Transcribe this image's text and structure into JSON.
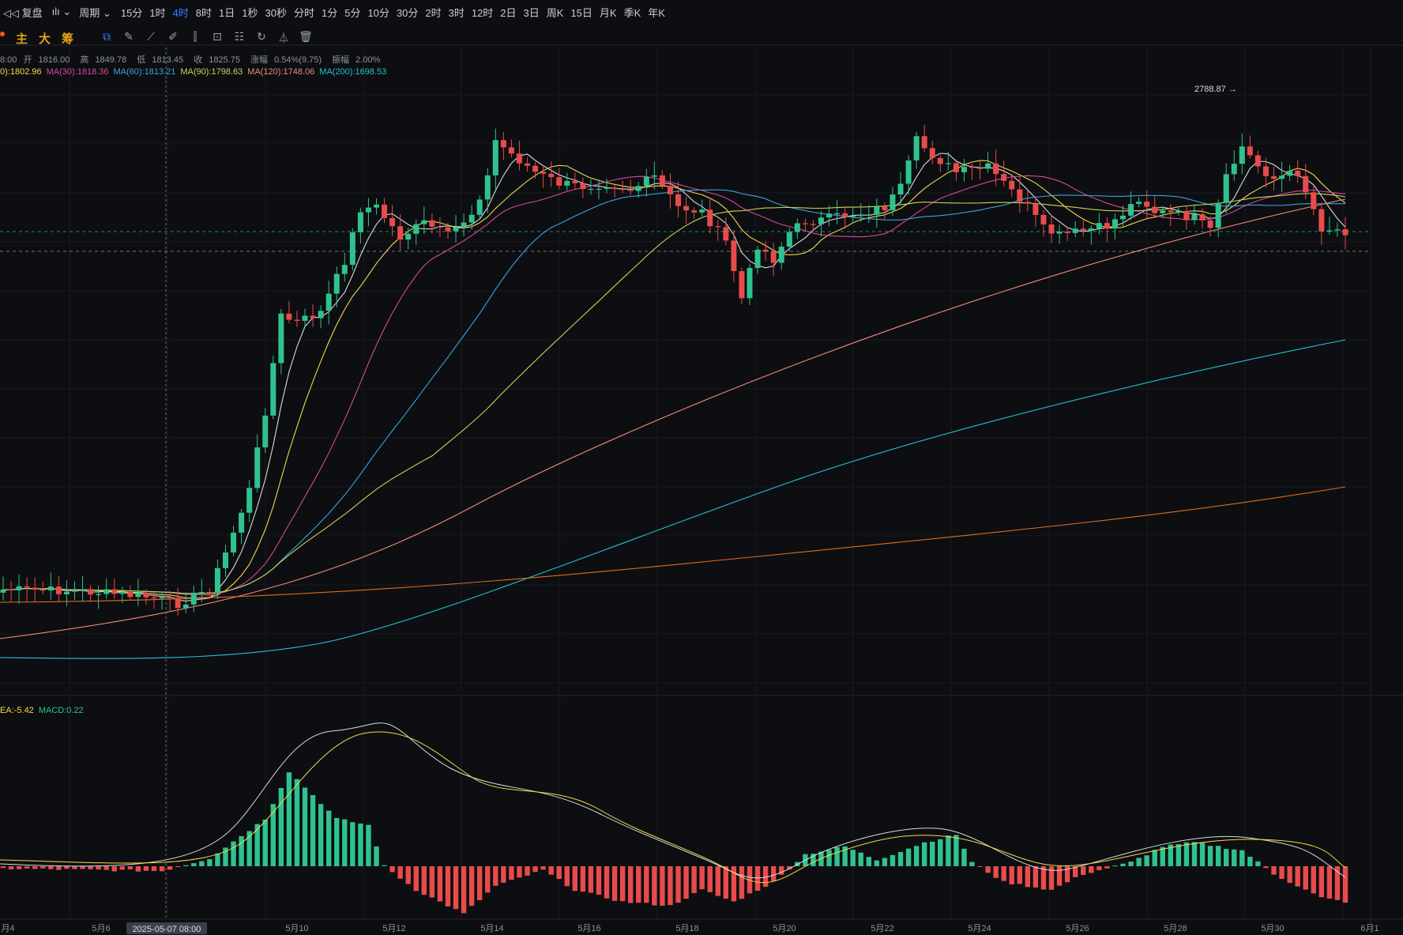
{
  "toolbar": {
    "replay_label": "复盘",
    "period_label": "周期",
    "intervals": [
      {
        "label": "15分",
        "active": false
      },
      {
        "label": "1时",
        "active": false
      },
      {
        "label": "4时",
        "active": true
      },
      {
        "label": "8时",
        "active": false
      },
      {
        "label": "1日",
        "active": false
      },
      {
        "label": "1秒",
        "active": false
      },
      {
        "label": "30秒",
        "active": false
      },
      {
        "label": "分时",
        "active": false
      },
      {
        "label": "1分",
        "active": false
      },
      {
        "label": "5分",
        "active": false
      },
      {
        "label": "10分",
        "active": false
      },
      {
        "label": "30分",
        "active": false
      },
      {
        "label": "2时",
        "active": false
      },
      {
        "label": "3时",
        "active": false
      },
      {
        "label": "12时",
        "active": false
      },
      {
        "label": "2日",
        "active": false
      },
      {
        "label": "3日",
        "active": false
      },
      {
        "label": "周K",
        "active": false
      },
      {
        "label": "15日",
        "active": false
      },
      {
        "label": "月K",
        "active": false
      },
      {
        "label": "季K",
        "active": false
      },
      {
        "label": "年K",
        "active": false
      }
    ]
  },
  "drawbar": {
    "tags": [
      "主",
      "大",
      "筹"
    ],
    "icons": [
      "copy-chart-icon",
      "line-tool-icon",
      "ruler-icon",
      "pen-icon",
      "candle-style-icon",
      "lock-icon",
      "notes-icon",
      "magnet-icon",
      "filter-icon",
      "trash-icon"
    ]
  },
  "ohlc": {
    "time_fragment": "8:00",
    "open_label": "开",
    "open": "1816.00",
    "high_label": "高",
    "high": "1849.78",
    "low_label": "低",
    "low": "1813.45",
    "close_label": "收",
    "close": "1825.75",
    "change_label": "涨幅",
    "change": "0.54%(9.75)",
    "amp_label": "振幅",
    "amp": "2.00%"
  },
  "ma_legend": [
    {
      "text": "0):1802.96",
      "color": "#f2d94e"
    },
    {
      "text": "MA(30):1818.36",
      "color": "#d9479a"
    },
    {
      "text": "MA(60):1813.21",
      "color": "#3ba3e0"
    },
    {
      "text": "MA(90):1798.63",
      "color": "#c9d45a"
    },
    {
      "text": "MA(120):1748.06",
      "color": "#f08a7a"
    },
    {
      "text": "MA(200):1698.53",
      "color": "#22c3d6"
    }
  ],
  "macd_legend": [
    {
      "text": "EA:-5.42",
      "color": "#f2d94e"
    },
    {
      "text": "MACD:0.22",
      "color": "#2fc28f"
    }
  ],
  "high_marker": "2788.87",
  "crosshair_date": "2025-05-07 08:00",
  "x_labels": [
    "月4",
    "5月6",
    "5月10",
    "5月12",
    "5月14",
    "5月16",
    "5月18",
    "5月20",
    "5月22",
    "5月24",
    "5月26",
    "5月28",
    "5月30",
    "6月1"
  ],
  "colors": {
    "up": "#2fc28f",
    "down": "#e84b4b",
    "ma_fast": "#d9dbe0",
    "ma_yellow": "#f2d94e",
    "ma_pink": "#d9479a",
    "ma_blue": "#3ba3e0",
    "ma_lime": "#c9d45a",
    "ma_salmon": "#f08a7a",
    "ma_cyan": "#22c3d6",
    "ma_orange": "#e26a1f"
  }
}
